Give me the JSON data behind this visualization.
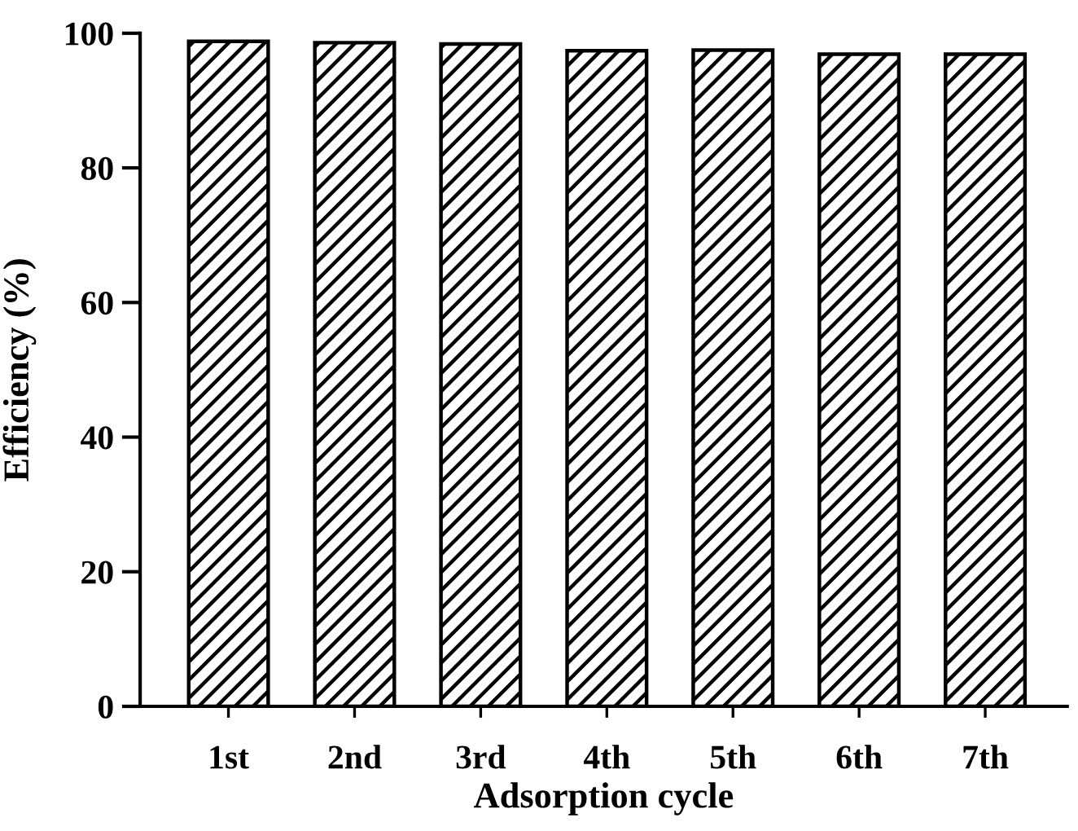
{
  "chart_data": {
    "type": "bar",
    "xlabel": "Adsorption cycle",
    "ylabel": "Efficiency (%)",
    "categories": [
      "1st",
      "2nd",
      "3rd",
      "4th",
      "5th",
      "6th",
      "7th"
    ],
    "values": [
      98.8,
      98.6,
      98.4,
      97.4,
      97.5,
      96.9,
      96.9
    ],
    "color": "#000000",
    "ylim": [
      0,
      100
    ],
    "yticks": [
      0,
      20,
      40,
      60,
      80,
      100
    ],
    "grid": false
  }
}
